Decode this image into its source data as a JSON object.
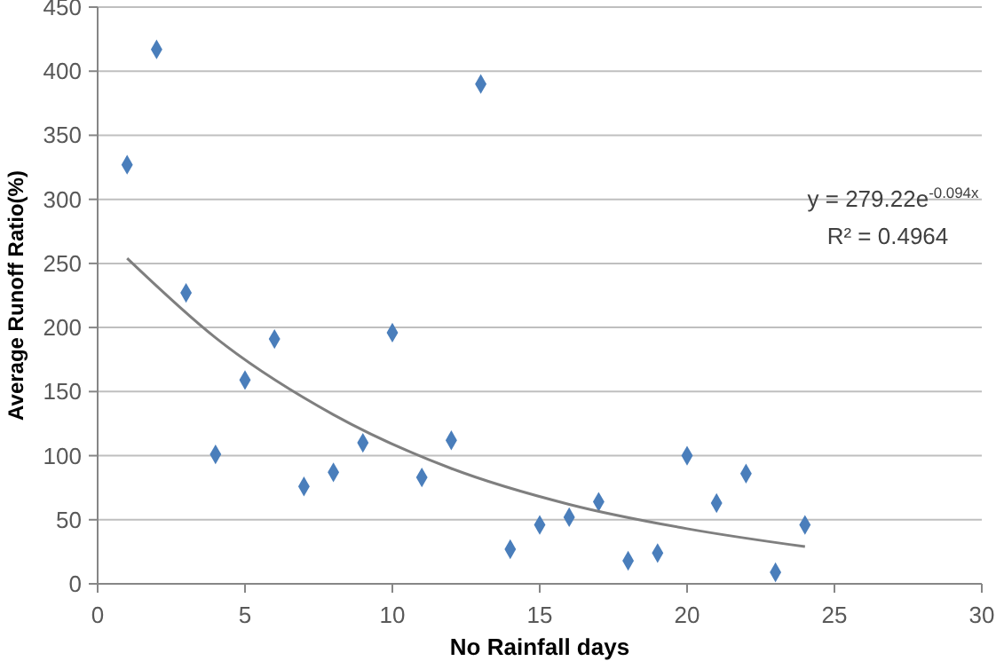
{
  "chart_data": {
    "type": "scatter",
    "xlabel": "No Rainfall days",
    "ylabel": "Average Runoff Ratio(%)",
    "x": [
      1,
      2,
      3,
      4,
      5,
      6,
      7,
      8,
      9,
      10,
      11,
      12,
      13,
      14,
      15,
      16,
      17,
      18,
      19,
      20,
      21,
      22,
      23,
      24
    ],
    "series": [
      {
        "color": "#4a7ebb",
        "marker": "diamond",
        "values": [
          327,
          417,
          227,
          101,
          159,
          191,
          76,
          87,
          110,
          196,
          83,
          112,
          390,
          27,
          46,
          52,
          64,
          18,
          24,
          100,
          63,
          86,
          9,
          46
        ]
      },
      {
        "type": "line",
        "color": "#7f7f7f",
        "marker": "none",
        "x": [
          1,
          4,
          8,
          12,
          16,
          20,
          24
        ],
        "values": [
          254,
          192,
          132,
          90,
          62,
          43,
          29
        ]
      }
    ],
    "annotations": [
      "y = 279.22e$^{-0.094x}$",
      "R² = 0.4964"
    ],
    "xlim": [
      0,
      30
    ],
    "xticks": [
      0,
      5,
      10,
      15,
      20,
      25,
      30
    ],
    "ylim": [
      0,
      450
    ],
    "yticks": [
      0,
      50,
      100,
      150,
      200,
      250,
      300,
      350,
      400,
      450
    ],
    "grid": "y"
  }
}
